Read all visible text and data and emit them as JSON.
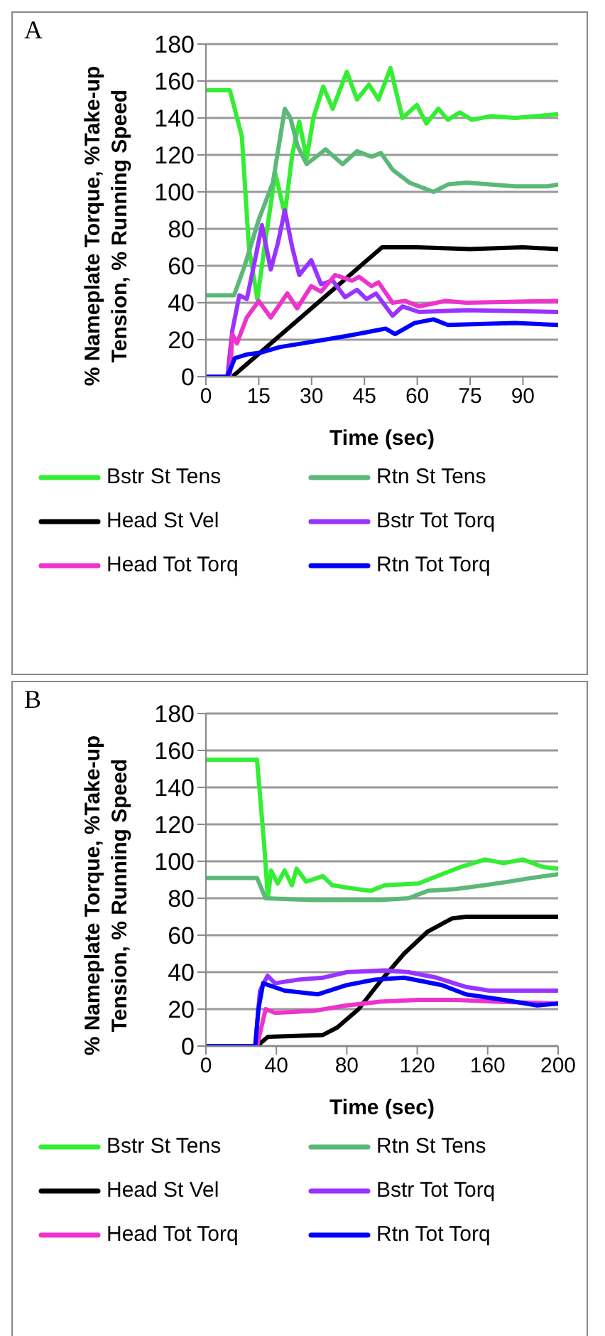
{
  "chart_data": [
    {
      "type": "line",
      "annotations": [
        "A"
      ],
      "xlabel": "Time (sec)",
      "ylabel": "% Nameplate Torque, %Take-up Tension, % Running Speed",
      "xlim": [
        0,
        100
      ],
      "xticks": [
        0,
        15,
        30,
        45,
        60,
        75,
        90
      ],
      "ylim": [
        0,
        180
      ],
      "yticks": [
        0,
        20,
        40,
        60,
        80,
        100,
        120,
        140,
        160,
        180
      ],
      "grid": "y",
      "legend": "bottom",
      "series": [
        {
          "name": "Bstr St Tens",
          "color": "#33ee33",
          "x": [
            0,
            6.8,
            10.2,
            12.2,
            14.6,
            17,
            19.7,
            22.4,
            24.5,
            26.5,
            28.6,
            30.5,
            33.3,
            36,
            40,
            42.9,
            46.3,
            49,
            52.4,
            55.8,
            59.9,
            62.6,
            66,
            68.7,
            72.1,
            75.5,
            81,
            87.8,
            100
          ],
          "values": [
            155,
            155,
            130,
            70,
            42,
            75,
            110,
            88,
            120,
            138,
            118,
            140,
            157,
            145,
            165,
            150,
            158,
            150,
            167,
            140,
            147,
            137,
            145,
            139,
            143,
            139,
            141,
            140,
            142
          ]
        },
        {
          "name": "Rtn St Tens",
          "color": "#5cb878",
          "x": [
            0,
            8,
            11,
            15,
            19,
            22.4,
            24,
            26,
            28.6,
            34,
            38.8,
            42.9,
            47,
            49.7,
            53,
            57.8,
            64.6,
            68.7,
            74,
            87.8,
            97,
            100
          ],
          "values": [
            44,
            44,
            60,
            85,
            105,
            145,
            140,
            125,
            115,
            123,
            115,
            122,
            119,
            121,
            112,
            105,
            100,
            104,
            105,
            103,
            103,
            104
          ]
        },
        {
          "name": "Head St Vel",
          "color": "#000000",
          "x": [
            0,
            7.5,
            50,
            60,
            75,
            90,
            100
          ],
          "values": [
            0,
            0,
            70,
            70,
            69,
            70,
            69
          ]
        },
        {
          "name": "Bstr Tot Torq",
          "color": "#9933ff",
          "x": [
            0,
            6.1,
            7.5,
            9.5,
            11.6,
            13.6,
            15.9,
            18.4,
            20.4,
            22.4,
            24.5,
            26.5,
            29.9,
            32.7,
            36,
            39.5,
            42.9,
            45.6,
            48.3,
            53,
            55.8,
            60.5,
            74,
            100
          ],
          "values": [
            0,
            0,
            25,
            44,
            42,
            60,
            82,
            58,
            72,
            90,
            70,
            55,
            63,
            50,
            52,
            43,
            47,
            42,
            45,
            33,
            38,
            35,
            36,
            35
          ]
        },
        {
          "name": "Head Tot Torq",
          "color": "#ee33cc",
          "x": [
            0,
            6.8,
            7.5,
            8.8,
            11.6,
            15,
            18.4,
            23.1,
            25.9,
            29.9,
            32.7,
            36.7,
            41.5,
            43.5,
            47,
            49,
            53,
            56.5,
            60.5,
            68,
            74,
            100
          ],
          "values": [
            0,
            0,
            23,
            18,
            32,
            41,
            32,
            45,
            37,
            49,
            46,
            55,
            52,
            54,
            49,
            51,
            40,
            41,
            38,
            41,
            40,
            41
          ]
        },
        {
          "name": "Rtn Tot Torq",
          "color": "#0000ff",
          "x": [
            0,
            6.1,
            8.2,
            11.6,
            15.6,
            21,
            30.6,
            40,
            48.3,
            51,
            53.7,
            59.2,
            64.6,
            68.7,
            87.8,
            100
          ],
          "values": [
            0,
            0,
            10,
            12,
            13,
            16,
            19,
            22,
            25,
            26,
            23,
            29,
            31,
            28,
            29,
            28
          ]
        }
      ]
    },
    {
      "type": "line",
      "annotations": [
        "B"
      ],
      "xlabel": "Time (sec)",
      "ylabel": "% Nameplate Torque, %Take-up Tension, % Running Speed",
      "xlim": [
        0,
        200
      ],
      "xticks": [
        0,
        40,
        80,
        120,
        160,
        200
      ],
      "ylim": [
        0,
        180
      ],
      "yticks": [
        0,
        20,
        40,
        60,
        80,
        100,
        120,
        140,
        160,
        180
      ],
      "grid": "y",
      "legend": "bottom",
      "series": [
        {
          "name": "Bstr St Tens",
          "color": "#33ee33",
          "x": [
            0,
            29,
            33,
            35.2,
            37,
            40.7,
            44.7,
            48.8,
            51.5,
            56.9,
            66.4,
            71.8,
            85.4,
            93.5,
            101.6,
            120.6,
            134,
            145,
            158.5,
            169,
            180,
            191,
            200
          ],
          "values": [
            155,
            155,
            110,
            80,
            95,
            88,
            95,
            87,
            96,
            89,
            92,
            87,
            85,
            84,
            87,
            88,
            93,
            97,
            101,
            99,
            101,
            97,
            96
          ]
        },
        {
          "name": "Rtn St Tens",
          "color": "#5cb878",
          "x": [
            0,
            29,
            33.9,
            60,
            99,
            115,
            126,
            142,
            158,
            172,
            185,
            200
          ],
          "values": [
            91,
            91,
            80,
            79,
            79,
            80,
            84,
            85,
            87,
            89,
            91,
            93
          ]
        },
        {
          "name": "Head St Vel",
          "color": "#000000",
          "x": [
            0,
            29,
            35.2,
            66.4,
            74.5,
            86.7,
            99,
            112.5,
            126,
            139.6,
            147.7,
            200
          ],
          "values": [
            0,
            0,
            5,
            6,
            10,
            20,
            35,
            50,
            62,
            69,
            70,
            70
          ]
        },
        {
          "name": "Bstr Tot Torq",
          "color": "#9933ff",
          "x": [
            0,
            28,
            30.7,
            35,
            39.3,
            52.8,
            66.4,
            80,
            101.6,
            115,
            131,
            147.7,
            161,
            200
          ],
          "values": [
            0,
            0,
            30,
            38,
            34,
            36,
            37,
            40,
            41,
            40,
            37,
            32,
            30,
            30
          ]
        },
        {
          "name": "Head Tot Torq",
          "color": "#ee33cc",
          "x": [
            0,
            29,
            33.9,
            39.3,
            61,
            80,
            99,
            120.6,
            142,
            164,
            200
          ],
          "values": [
            0,
            0,
            20,
            18,
            19,
            22,
            24,
            25,
            25,
            24,
            23
          ]
        },
        {
          "name": "Rtn Tot Torq",
          "color": "#0000ff",
          "x": [
            0,
            28,
            29.8,
            32.5,
            44.7,
            63.7,
            80,
            96.2,
            112.5,
            134,
            147.7,
            169,
            188,
            200
          ],
          "values": [
            0,
            0,
            20,
            34,
            30,
            28,
            33,
            36,
            37,
            33,
            28,
            25,
            22,
            23
          ]
        }
      ]
    }
  ]
}
